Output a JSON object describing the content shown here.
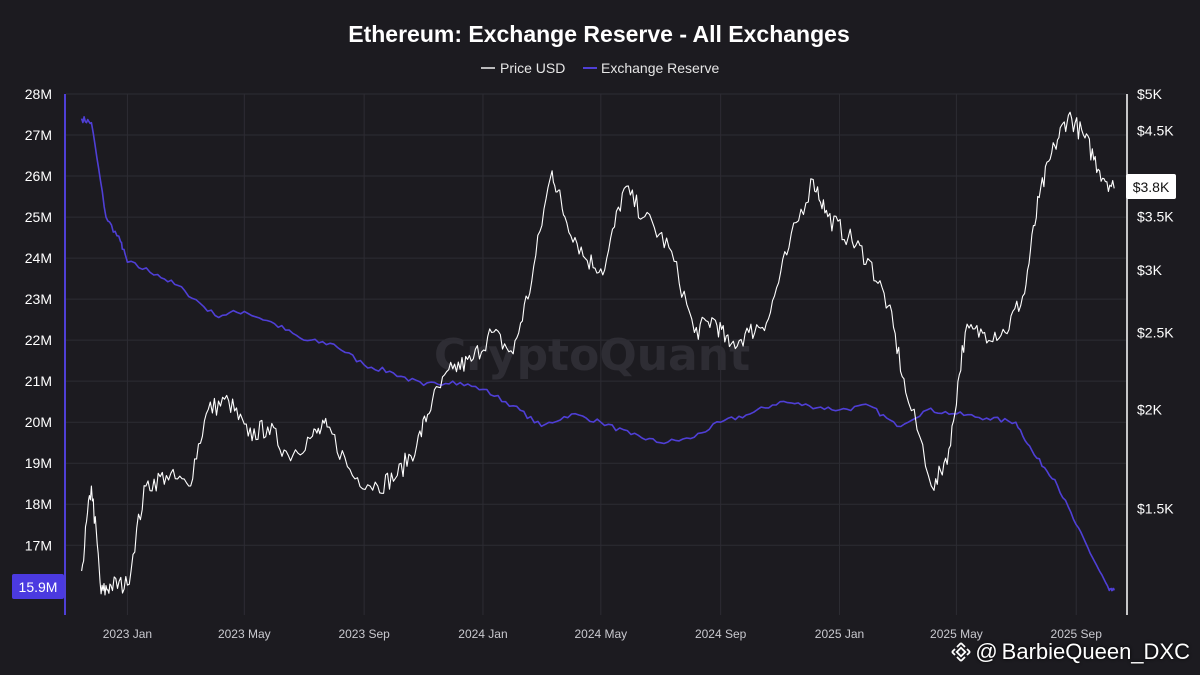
{
  "credit": {
    "at": "@",
    "handle": "BarbieQueen_DXC",
    "icon": "binance-logo-icon"
  },
  "colors": {
    "background": "#1c1b20",
    "price": "#ffffff",
    "reserve": "#4f3fd6",
    "reserve_badge": "#4b3ae0"
  },
  "chart_data": {
    "type": "line",
    "title": "Ethereum: Exchange Reserve - All Exchanges",
    "watermark": "CryptoQuant",
    "legend": [
      "Price USD",
      "Exchange Reserve"
    ],
    "legend_position": "top-center",
    "grid": true,
    "x_ticks": [
      "2023 Jan",
      "2023 May",
      "2023 Sep",
      "2024 Jan",
      "2024 May",
      "2024 Sep",
      "2025 Jan",
      "2025 May",
      "2025 Sep"
    ],
    "x_range": [
      "2022-11",
      "2025-10"
    ],
    "y_left": {
      "label": "",
      "ticks": [
        "28M",
        "27M",
        "26M",
        "25M",
        "24M",
        "23M",
        "22M",
        "21M",
        "20M",
        "19M",
        "18M",
        "17M"
      ],
      "range": [
        15.3,
        28
      ],
      "unit": "M"
    },
    "y_right": {
      "label": "",
      "scale": "log",
      "ticks": [
        "$5K",
        "$4.5K",
        "$3.5K",
        "$3K",
        "$2.5K",
        "$2K",
        "$1.5K"
      ],
      "range": [
        1100,
        5000
      ]
    },
    "badges": {
      "price_last": "$3.8K",
      "reserve_last": "15.9M"
    },
    "series": [
      {
        "name": "Price USD",
        "axis": "right",
        "x": [
          "2022-11-15",
          "2022-11-25",
          "2022-12-05",
          "2022-12-15",
          "2023-01-01",
          "2023-01-20",
          "2023-02-10",
          "2023-03-05",
          "2023-03-25",
          "2023-04-15",
          "2023-05-05",
          "2023-05-25",
          "2023-06-15",
          "2023-07-10",
          "2023-07-25",
          "2023-08-20",
          "2023-09-15",
          "2023-10-05",
          "2023-10-25",
          "2023-11-10",
          "2023-12-01",
          "2023-12-20",
          "2024-01-10",
          "2024-02-01",
          "2024-02-20",
          "2024-03-12",
          "2024-03-25",
          "2024-04-15",
          "2024-05-05",
          "2024-05-25",
          "2024-06-15",
          "2024-07-10",
          "2024-08-05",
          "2024-08-25",
          "2024-09-10",
          "2024-09-30",
          "2024-10-20",
          "2024-11-10",
          "2024-12-05",
          "2024-12-20",
          "2025-01-10",
          "2025-01-30",
          "2025-02-20",
          "2025-03-10",
          "2025-04-08",
          "2025-04-25",
          "2025-05-10",
          "2025-05-30",
          "2025-06-20",
          "2025-07-10",
          "2025-07-25",
          "2025-08-10",
          "2025-08-24",
          "2025-09-10",
          "2025-09-25",
          "2025-10-10"
        ],
        "values": [
          1250,
          1600,
          1170,
          1200,
          1200,
          1600,
          1650,
          1600,
          2000,
          2050,
          1850,
          1900,
          1750,
          1850,
          1900,
          1650,
          1600,
          1650,
          1800,
          2050,
          2250,
          2300,
          2500,
          2350,
          2900,
          4000,
          3500,
          3100,
          3000,
          3800,
          3500,
          3200,
          2500,
          2600,
          2400,
          2500,
          2600,
          3200,
          3900,
          3500,
          3300,
          3100,
          2700,
          2100,
          1580,
          1800,
          2500,
          2500,
          2500,
          2800,
          3700,
          4300,
          4700,
          4400,
          4000,
          3800
        ]
      },
      {
        "name": "Exchange Reserve",
        "axis": "left",
        "x": [
          "2022-11-15",
          "2022-11-25",
          "2022-12-10",
          "2022-12-25",
          "2023-01-01",
          "2023-02-01",
          "2023-03-01",
          "2023-04-01",
          "2023-05-01",
          "2023-06-01",
          "2023-07-01",
          "2023-08-01",
          "2023-09-01",
          "2023-10-01",
          "2023-11-01",
          "2023-12-01",
          "2024-01-01",
          "2024-02-01",
          "2024-03-01",
          "2024-04-01",
          "2024-05-01",
          "2024-06-01",
          "2024-07-01",
          "2024-08-01",
          "2024-09-01",
          "2024-10-01",
          "2024-11-01",
          "2024-12-01",
          "2025-01-01",
          "2025-02-01",
          "2025-03-01",
          "2025-04-01",
          "2025-05-01",
          "2025-06-01",
          "2025-07-01",
          "2025-07-20",
          "2025-08-10",
          "2025-09-01",
          "2025-09-20",
          "2025-10-05",
          "2025-10-10"
        ],
        "values": [
          27.4,
          27.3,
          25.0,
          24.4,
          23.9,
          23.6,
          23.2,
          22.6,
          22.7,
          22.4,
          22.0,
          21.9,
          21.4,
          21.2,
          20.9,
          21.0,
          20.8,
          20.4,
          19.9,
          20.2,
          20.0,
          19.7,
          19.5,
          19.6,
          20.0,
          20.2,
          20.5,
          20.4,
          20.3,
          20.4,
          19.9,
          20.3,
          20.2,
          20.1,
          20.0,
          19.2,
          18.6,
          17.5,
          16.6,
          15.9,
          15.9
        ]
      }
    ]
  }
}
